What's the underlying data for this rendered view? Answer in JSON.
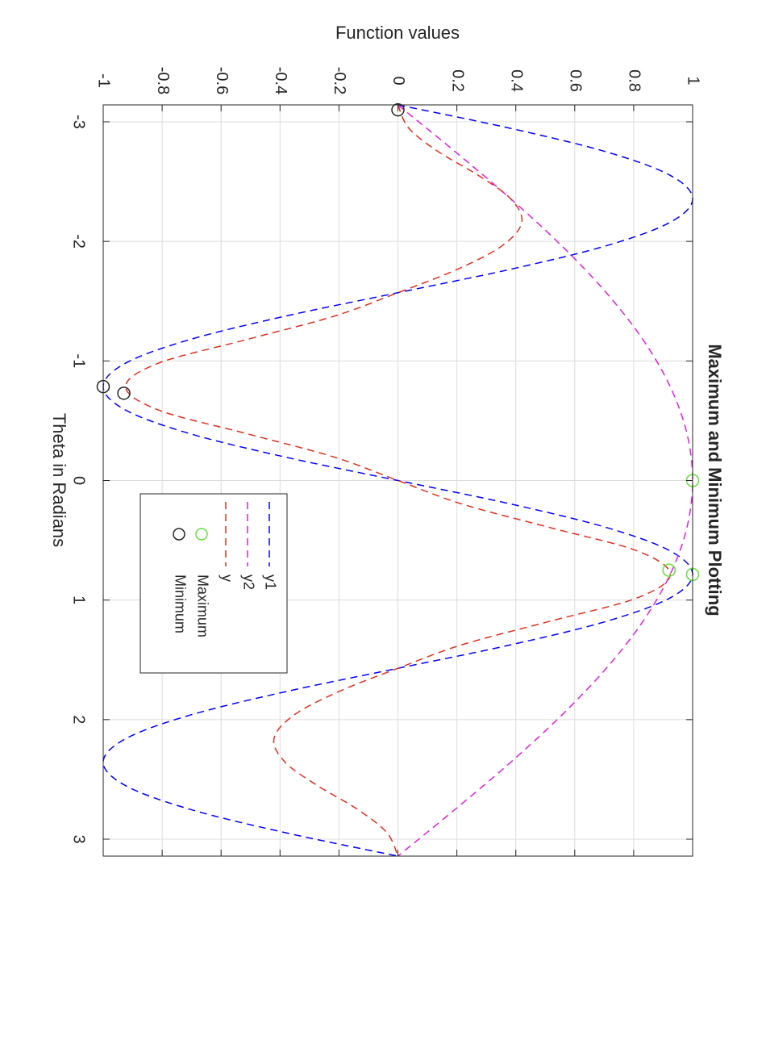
{
  "chart_data": {
    "type": "line",
    "orientation": "rotated-90-clockwise",
    "title": "Maximum and Minimum Plotting",
    "xlabel": "Theta in Radians",
    "ylabel": "Function values",
    "xlim": [
      -3.14159,
      3.14159
    ],
    "ylim": [
      -1,
      1
    ],
    "x_ticks": [
      -3,
      -2,
      -1,
      0,
      1,
      2,
      3
    ],
    "y_ticks": [
      -1,
      -0.8,
      -0.6,
      -0.4,
      -0.2,
      0,
      0.2,
      0.4,
      0.6,
      0.8,
      1
    ],
    "x_tick_labels": [
      "-3",
      "-2",
      "-1",
      "0",
      "1",
      "2",
      "3"
    ],
    "y_tick_labels": [
      "-1",
      "-0.8",
      "-0.6",
      "-0.4",
      "-0.2",
      "0",
      "0.2",
      "0.4",
      "0.6",
      "0.8",
      "1"
    ],
    "grid": true,
    "legend_position": "bottom-center",
    "series": [
      {
        "name": "y1",
        "color": "#0000ff",
        "style": "dashed",
        "x": [
          -3.1416,
          -2.9452,
          -2.7489,
          -2.5525,
          -2.3562,
          -2.1598,
          -1.9635,
          -1.7671,
          -1.5708,
          -1.3744,
          -1.1781,
          -0.9817,
          -0.7854,
          -0.589,
          -0.3927,
          -0.1963,
          0,
          0.1963,
          0.3927,
          0.589,
          0.7854,
          0.9817,
          1.1781,
          1.3744,
          1.5708,
          1.7671,
          1.9635,
          2.1598,
          2.3562,
          2.5525,
          2.7489,
          2.9452,
          3.1416
        ],
        "y": [
          0,
          0.3827,
          0.7071,
          0.9239,
          1,
          0.9239,
          0.7071,
          0.3827,
          0,
          -0.3827,
          -0.7071,
          -0.9239,
          -1,
          -0.9239,
          -0.7071,
          -0.3827,
          0,
          0.3827,
          0.7071,
          0.9239,
          1,
          0.9239,
          0.7071,
          0.3827,
          0,
          -0.3827,
          -0.7071,
          -0.9239,
          -1,
          -0.9239,
          -0.7071,
          -0.3827,
          0
        ]
      },
      {
        "name": "y2",
        "color": "#e020e0",
        "style": "dashed",
        "x": [
          -3.1416,
          -2.7489,
          -2.3562,
          -1.9635,
          -1.5708,
          -1.1781,
          -0.7854,
          -0.3927,
          0,
          0.3927,
          0.7854,
          1.1781,
          1.5708,
          1.9635,
          2.3562,
          2.7489,
          3.1416
        ],
        "y": [
          0,
          0.1951,
          0.3827,
          0.5556,
          0.7071,
          0.8315,
          0.9239,
          0.9808,
          1,
          0.9808,
          0.9239,
          0.8315,
          0.7071,
          0.5556,
          0.3827,
          0.1951,
          0
        ]
      },
      {
        "name": "y",
        "color": "#e03020",
        "style": "dashed",
        "x": [
          -3.1416,
          -2.9452,
          -2.7489,
          -2.5525,
          -2.3562,
          -2.1598,
          -1.9635,
          -1.7671,
          -1.5708,
          -1.3744,
          -1.1781,
          -0.9817,
          -0.7854,
          -0.589,
          -0.3927,
          -0.1963,
          0,
          0.1963,
          0.3927,
          0.589,
          0.7854,
          0.9817,
          1.1781,
          1.3744,
          1.5708,
          1.7671,
          1.9635,
          2.1598,
          2.3562,
          2.5525,
          2.7489,
          2.9452,
          3.1416
        ],
        "y": [
          0,
          0.0375,
          0.138,
          0.2725,
          0.3827,
          0.4204,
          0.3536,
          0.2022,
          0,
          -0.2167,
          -0.5144,
          -0.8121,
          -0.9239,
          -0.8121,
          -0.5144,
          -0.2167,
          0,
          0.2167,
          0.5144,
          0.8121,
          0.9239,
          0.8121,
          0.5144,
          0.2167,
          0,
          -0.2022,
          -0.3536,
          -0.4204,
          -0.3827,
          -0.2725,
          -0.138,
          -0.0375,
          0
        ]
      }
    ],
    "markers": [
      {
        "name": "Maximum",
        "color": "#66e040",
        "points": [
          [
            0,
            1
          ],
          [
            0.7854,
            1
          ],
          [
            0.75,
            0.92
          ]
        ]
      },
      {
        "name": "Minimum",
        "color": "#262626",
        "points": [
          [
            -3.1,
            0
          ],
          [
            -0.7854,
            -1
          ],
          [
            -0.73,
            -0.93
          ]
        ]
      }
    ],
    "legend": [
      {
        "label": "y1",
        "color": "#0000ff",
        "kind": "line"
      },
      {
        "label": "y2",
        "color": "#e020e0",
        "kind": "line"
      },
      {
        "label": "y",
        "color": "#e03020",
        "kind": "line"
      },
      {
        "label": "Maximum",
        "color": "#66e040",
        "kind": "circle"
      },
      {
        "label": "Minimum",
        "color": "#262626",
        "kind": "circle"
      }
    ]
  }
}
